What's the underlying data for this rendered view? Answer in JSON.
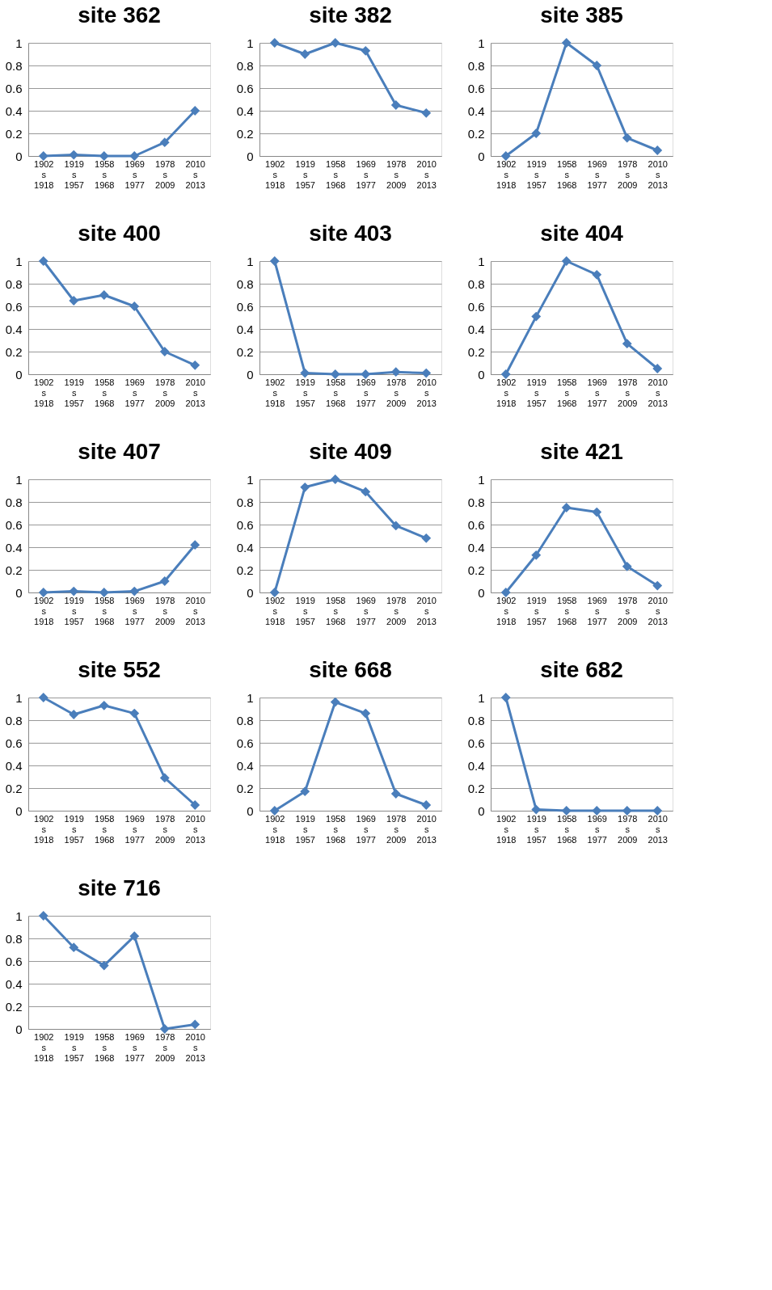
{
  "chart_data": [
    {
      "type": "line",
      "title": "site 362",
      "categories": [
        "1902 s 1918",
        "1919 s 1957",
        "1958 s 1968",
        "1969 s 1977",
        "1978 s 2009",
        "2010 s 2013"
      ],
      "series": [
        {
          "color": "#4a7ebb",
          "values": [
            0,
            0.01,
            0,
            0,
            0.12,
            0.4
          ]
        }
      ],
      "ylim": [
        0,
        1
      ],
      "yticks": [
        0,
        0.2,
        0.4,
        0.6,
        0.8,
        1
      ],
      "grid": "y",
      "marker": "diamond"
    },
    {
      "type": "line",
      "title": "site 382",
      "categories": [
        "1902 s 1918",
        "1919 s 1957",
        "1958 s 1968",
        "1969 s 1977",
        "1978 s 2009",
        "2010 s 2013"
      ],
      "series": [
        {
          "color": "#4a7ebb",
          "values": [
            1,
            0.9,
            1,
            0.93,
            0.45,
            0.38
          ]
        }
      ],
      "ylim": [
        0,
        1
      ],
      "yticks": [
        0,
        0.2,
        0.4,
        0.6,
        0.8,
        1
      ],
      "grid": "y",
      "marker": "diamond"
    },
    {
      "type": "line",
      "title": "site 385",
      "categories": [
        "1902 s 1918",
        "1919 s 1957",
        "1958 s 1968",
        "1969 s 1977",
        "1978 s 2009",
        "2010 s 2013"
      ],
      "series": [
        {
          "color": "#4a7ebb",
          "values": [
            0,
            0.2,
            1,
            0.8,
            0.16,
            0.05
          ]
        }
      ],
      "ylim": [
        0,
        1
      ],
      "yticks": [
        0,
        0.2,
        0.4,
        0.6,
        0.8,
        1
      ],
      "grid": "y",
      "marker": "diamond"
    },
    {
      "type": "line",
      "title": "site 400",
      "categories": [
        "1902 s 1918",
        "1919 s 1957",
        "1958 s 1968",
        "1969 s 1977",
        "1978 s 2009",
        "2010 s 2013"
      ],
      "series": [
        {
          "color": "#4a7ebb",
          "values": [
            1,
            0.65,
            0.7,
            0.6,
            0.2,
            0.08
          ]
        }
      ],
      "ylim": [
        0,
        1
      ],
      "yticks": [
        0,
        0.2,
        0.4,
        0.6,
        0.8,
        1
      ],
      "grid": "y",
      "marker": "diamond"
    },
    {
      "type": "line",
      "title": "site 403",
      "categories": [
        "1902 s 1918",
        "1919 s 1957",
        "1958 s 1968",
        "1969 s 1977",
        "1978 s 2009",
        "2010 s 2013"
      ],
      "series": [
        {
          "color": "#4a7ebb",
          "values": [
            1,
            0.01,
            0,
            0,
            0.02,
            0.01
          ]
        }
      ],
      "ylim": [
        0,
        1
      ],
      "yticks": [
        0,
        0.2,
        0.4,
        0.6,
        0.8,
        1
      ],
      "grid": "y",
      "marker": "diamond"
    },
    {
      "type": "line",
      "title": "site 404",
      "categories": [
        "1902 s 1918",
        "1919 s 1957",
        "1958 s 1968",
        "1969 s 1977",
        "1978 s 2009",
        "2010 s 2013"
      ],
      "series": [
        {
          "color": "#4a7ebb",
          "values": [
            0,
            0.51,
            1,
            0.88,
            0.27,
            0.05
          ]
        }
      ],
      "ylim": [
        0,
        1
      ],
      "yticks": [
        0,
        0.2,
        0.4,
        0.6,
        0.8,
        1
      ],
      "grid": "y",
      "marker": "diamond"
    },
    {
      "type": "line",
      "title": "site 407",
      "categories": [
        "1902 s 1918",
        "1919 s 1957",
        "1958 s 1968",
        "1969 s 1977",
        "1978 s 2009",
        "2010 s 2013"
      ],
      "series": [
        {
          "color": "#4a7ebb",
          "values": [
            0,
            0.01,
            0,
            0.01,
            0.1,
            0.42
          ]
        }
      ],
      "ylim": [
        0,
        1
      ],
      "yticks": [
        0,
        0.2,
        0.4,
        0.6,
        0.8,
        1
      ],
      "grid": "y",
      "marker": "diamond"
    },
    {
      "type": "line",
      "title": "site 409",
      "categories": [
        "1902 s 1918",
        "1919 s 1957",
        "1958 s 1968",
        "1969 s 1977",
        "1978 s 2009",
        "2010 s 2013"
      ],
      "series": [
        {
          "color": "#4a7ebb",
          "values": [
            0,
            0.93,
            1,
            0.89,
            0.59,
            0.48
          ]
        }
      ],
      "ylim": [
        0,
        1
      ],
      "yticks": [
        0,
        0.2,
        0.4,
        0.6,
        0.8,
        1
      ],
      "grid": "y",
      "marker": "diamond"
    },
    {
      "type": "line",
      "title": "site 421",
      "categories": [
        "1902 s 1918",
        "1919 s 1957",
        "1958 s 1968",
        "1969 s 1977",
        "1978 s 2009",
        "2010 s 2013"
      ],
      "series": [
        {
          "color": "#4a7ebb",
          "values": [
            0,
            0.33,
            0.75,
            0.71,
            0.23,
            0.06
          ]
        }
      ],
      "ylim": [
        0,
        1
      ],
      "yticks": [
        0,
        0.2,
        0.4,
        0.6,
        0.8,
        1
      ],
      "grid": "y",
      "marker": "diamond"
    },
    {
      "type": "line",
      "title": "site 552",
      "categories": [
        "1902 s 1918",
        "1919 s 1957",
        "1958 s 1968",
        "1969 s 1977",
        "1978 s 2009",
        "2010 s 2013"
      ],
      "series": [
        {
          "color": "#4a7ebb",
          "values": [
            1,
            0.85,
            0.93,
            0.86,
            0.29,
            0.05
          ]
        }
      ],
      "ylim": [
        0,
        1
      ],
      "yticks": [
        0,
        0.2,
        0.4,
        0.6,
        0.8,
        1
      ],
      "grid": "y",
      "marker": "diamond"
    },
    {
      "type": "line",
      "title": "site 668",
      "categories": [
        "1902 s 1918",
        "1919 s 1957",
        "1958 s 1968",
        "1969 s 1977",
        "1978 s 2009",
        "2010 s 2013"
      ],
      "series": [
        {
          "color": "#4a7ebb",
          "values": [
            0,
            0.17,
            0.96,
            0.86,
            0.15,
            0.05
          ]
        }
      ],
      "ylim": [
        0,
        1
      ],
      "yticks": [
        0,
        0.2,
        0.4,
        0.6,
        0.8,
        1
      ],
      "grid": "y",
      "marker": "diamond"
    },
    {
      "type": "line",
      "title": "site 682",
      "categories": [
        "1902 s 1918",
        "1919 s 1957",
        "1958 s 1968",
        "1969 s 1977",
        "1978 s 2009",
        "2010 s 2013"
      ],
      "series": [
        {
          "color": "#4a7ebb",
          "values": [
            1,
            0.01,
            0,
            0,
            0,
            0
          ]
        }
      ],
      "ylim": [
        0,
        1
      ],
      "yticks": [
        0,
        0.2,
        0.4,
        0.6,
        0.8,
        1
      ],
      "grid": "y",
      "marker": "diamond"
    },
    {
      "type": "line",
      "title": "site 716",
      "categories": [
        "1902 s 1918",
        "1919 s 1957",
        "1958 s 1968",
        "1969 s 1977",
        "1978 s 2009",
        "2010 s 2013"
      ],
      "series": [
        {
          "color": "#4a7ebb",
          "values": [
            1,
            0.72,
            0.56,
            0.82,
            0,
            0.04
          ]
        }
      ],
      "ylim": [
        0,
        1
      ],
      "yticks": [
        0,
        0.2,
        0.4,
        0.6,
        0.8,
        1
      ],
      "grid": "y",
      "marker": "diamond"
    }
  ]
}
